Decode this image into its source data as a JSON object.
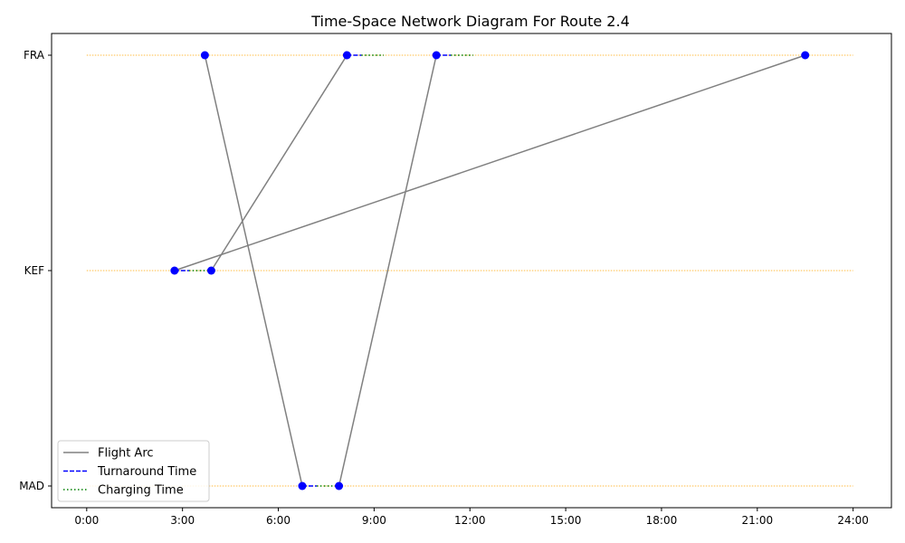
{
  "chart_data": {
    "type": "line",
    "title": "Time-Space Network Diagram For Route 2.4",
    "xlabel": "",
    "ylabel": "",
    "x_unit": "hours",
    "xlim": [
      -1.1,
      25.2
    ],
    "x_ticks": [
      {
        "value": 0,
        "label": "0:00"
      },
      {
        "value": 3,
        "label": "3:00"
      },
      {
        "value": 6,
        "label": "6:00"
      },
      {
        "value": 9,
        "label": "9:00"
      },
      {
        "value": 12,
        "label": "12:00"
      },
      {
        "value": 15,
        "label": "15:00"
      },
      {
        "value": 18,
        "label": "18:00"
      },
      {
        "value": 21,
        "label": "21:00"
      },
      {
        "value": 24,
        "label": "24:00"
      }
    ],
    "stations": [
      "MAD",
      "KEF",
      "FRA"
    ],
    "station_guides": {
      "x_from": 0,
      "x_to": 24,
      "color": "#ffa500",
      "style": "dotted"
    },
    "flight_arcs": [
      {
        "from_station": "FRA",
        "dep": 3.7,
        "to_station": "MAD",
        "arr": 6.75
      },
      {
        "from_station": "MAD",
        "dep": 7.9,
        "to_station": "FRA",
        "arr": 10.95
      },
      {
        "from_station": "KEF",
        "dep": 3.9,
        "to_station": "FRA",
        "arr": 8.15
      },
      {
        "from_station": "KEF",
        "dep": 2.75,
        "to_station": "FRA",
        "arr": 22.5
      }
    ],
    "turnaround_segments": [
      {
        "station": "KEF",
        "start": 2.75,
        "end": 3.2
      },
      {
        "station": "MAD",
        "start": 6.75,
        "end": 7.2
      },
      {
        "station": "FRA",
        "start": 8.15,
        "end": 8.6
      },
      {
        "station": "FRA",
        "start": 10.95,
        "end": 11.4
      }
    ],
    "charging_segments": [
      {
        "station": "KEF",
        "start": 3.2,
        "end": 3.9
      },
      {
        "station": "MAD",
        "start": 7.2,
        "end": 7.9
      },
      {
        "station": "FRA",
        "start": 8.6,
        "end": 9.3
      },
      {
        "station": "FRA",
        "start": 11.4,
        "end": 12.1
      }
    ],
    "nodes": [
      {
        "station": "FRA",
        "time": 3.7
      },
      {
        "station": "FRA",
        "time": 8.15
      },
      {
        "station": "FRA",
        "time": 10.95
      },
      {
        "station": "FRA",
        "time": 22.5
      },
      {
        "station": "KEF",
        "time": 2.75
      },
      {
        "station": "KEF",
        "time": 3.9
      },
      {
        "station": "MAD",
        "time": 6.75
      },
      {
        "station": "MAD",
        "time": 7.9
      }
    ],
    "legend": {
      "position": "lower-left",
      "entries": [
        {
          "label": "Flight Arc",
          "color": "#808080",
          "style": "solid"
        },
        {
          "label": "Turnaround Time",
          "color": "#0000ff",
          "style": "dashed"
        },
        {
          "label": "Charging Time",
          "color": "#008000",
          "style": "dotted"
        }
      ]
    },
    "colors": {
      "flight_arc": "#808080",
      "turnaround": "#0000ff",
      "charging": "#008000",
      "node": "#0000ff",
      "guide": "#ffa500"
    },
    "grid": false
  }
}
